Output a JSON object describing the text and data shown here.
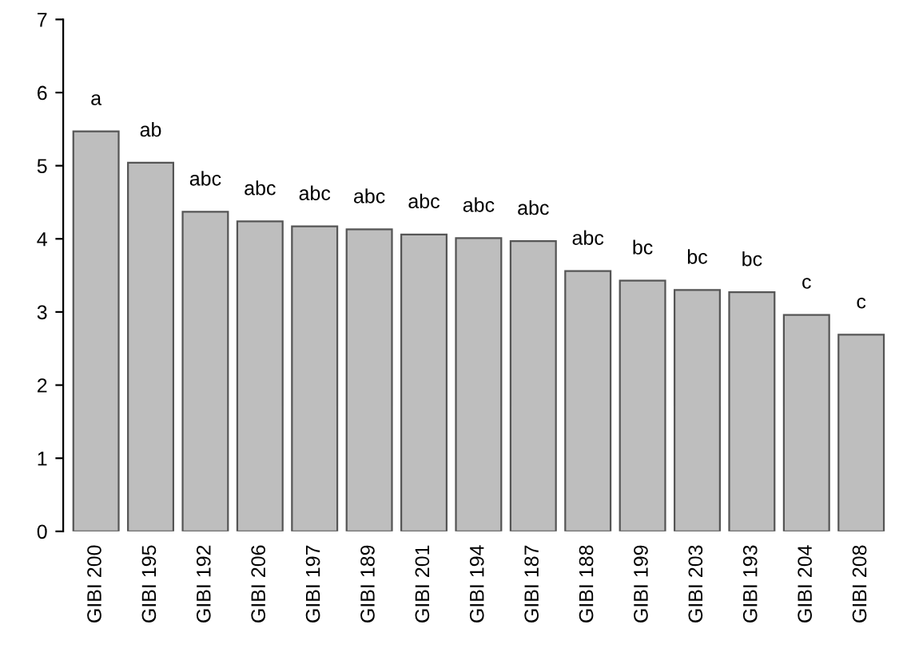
{
  "chart_data": {
    "type": "bar",
    "categories": [
      "GIBI 200",
      "GIBI 195",
      "GIBI 192",
      "GIBI 206",
      "GIBI 197",
      "GIBI 189",
      "GIBI 201",
      "GIBI 194",
      "GIBI 187",
      "GIBI 188",
      "GIBI 199",
      "GIBI 203",
      "GIBI 193",
      "GIBI 204",
      "GIBI 208"
    ],
    "values": [
      5.47,
      5.04,
      4.37,
      4.24,
      4.17,
      4.13,
      4.06,
      4.01,
      3.97,
      3.56,
      3.43,
      3.3,
      3.27,
      2.96,
      2.69
    ],
    "color": "#bebebe",
    "ylim": [
      0,
      7
    ],
    "yticks": [
      0,
      1,
      2,
      3,
      4,
      5,
      6,
      7
    ],
    "grid": false,
    "annotations": [
      {
        "text": "a",
        "x": "GIBI 200",
        "y": 5.47
      },
      {
        "text": "ab",
        "x": "GIBI 195",
        "y": 5.04
      },
      {
        "text": "abc",
        "x": "GIBI 192",
        "y": 4.37
      },
      {
        "text": "abc",
        "x": "GIBI 206",
        "y": 4.24
      },
      {
        "text": "abc",
        "x": "GIBI 197",
        "y": 4.17
      },
      {
        "text": "abc",
        "x": "GIBI 189",
        "y": 4.13
      },
      {
        "text": "abc",
        "x": "GIBI 201",
        "y": 4.06
      },
      {
        "text": "abc",
        "x": "GIBI 194",
        "y": 4.01
      },
      {
        "text": "abc",
        "x": "GIBI 187",
        "y": 3.97
      },
      {
        "text": "abc",
        "x": "GIBI 188",
        "y": 3.56
      },
      {
        "text": "bc",
        "x": "GIBI 199",
        "y": 3.43
      },
      {
        "text": "bc",
        "x": "GIBI 203",
        "y": 3.3
      },
      {
        "text": "bc",
        "x": "GIBI 193",
        "y": 3.27
      },
      {
        "text": "c",
        "x": "GIBI 204",
        "y": 2.96
      },
      {
        "text": "c",
        "x": "GIBI 208",
        "y": 2.69
      }
    ]
  }
}
